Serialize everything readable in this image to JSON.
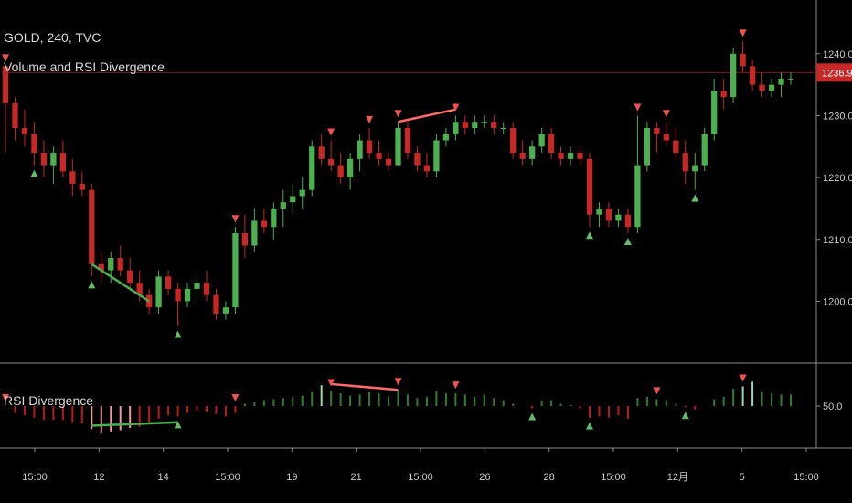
{
  "header": {
    "symbol_line": "GOLD, 240, TVC",
    "indicator_name": "Volume and RSI Divergence"
  },
  "panel2": {
    "title": "RSI Divergence"
  },
  "price_label": {
    "value": "1236.97"
  },
  "colors": {
    "up": "#4caf50",
    "down": "#c62828",
    "signal_up": "#66bb6a",
    "signal_down": "#ef5350",
    "divergence_bear": "#ff6b6b",
    "divergence_bull": "#4caf50",
    "grid": "#2a2a2a",
    "axis_text": "#c8c8c8"
  },
  "chart_data": [
    {
      "type": "candlestick",
      "title": "GOLD, 240, TVC",
      "subtitle": "Volume and RSI Divergence",
      "y_ticks": [
        1200,
        1210,
        1220,
        1230,
        1240
      ],
      "ylim": [
        1194,
        1245
      ],
      "last_price": 1236.97,
      "x_tick_labels": [
        "15:00",
        "12",
        "14",
        "15:00",
        "19",
        "21",
        "15:00",
        "26",
        "28",
        "15:00",
        "12月",
        "5",
        "15:00"
      ],
      "candles": [
        [
          1238,
          1238,
          1224,
          1232
        ],
        [
          1232,
          1233,
          1226,
          1228
        ],
        [
          1228,
          1231,
          1225,
          1227
        ],
        [
          1227,
          1229,
          1222,
          1224
        ],
        [
          1224,
          1226,
          1220,
          1222
        ],
        [
          1222,
          1225,
          1219,
          1224
        ],
        [
          1224,
          1226,
          1220,
          1221
        ],
        [
          1221,
          1223,
          1217,
          1219
        ],
        [
          1219,
          1221,
          1217,
          1218
        ],
        [
          1218,
          1219,
          1204,
          1206
        ],
        [
          1206,
          1208,
          1203,
          1205
        ],
        [
          1205,
          1208,
          1203,
          1207
        ],
        [
          1207,
          1209,
          1204,
          1205
        ],
        [
          1205,
          1207,
          1202,
          1203
        ],
        [
          1203,
          1205,
          1200,
          1201
        ],
        [
          1201,
          1202,
          1198,
          1199
        ],
        [
          1199,
          1205,
          1198,
          1204
        ],
        [
          1204,
          1205,
          1201,
          1202
        ],
        [
          1202,
          1203,
          1196,
          1200
        ],
        [
          1200,
          1203,
          1199,
          1202
        ],
        [
          1202,
          1204,
          1200,
          1203
        ],
        [
          1203,
          1205,
          1200,
          1201
        ],
        [
          1201,
          1202,
          1197,
          1198
        ],
        [
          1198,
          1200,
          1197,
          1199
        ],
        [
          1199,
          1212,
          1198,
          1211
        ],
        [
          1211,
          1214,
          1207,
          1209
        ],
        [
          1209,
          1215,
          1208,
          1213
        ],
        [
          1213,
          1215,
          1211,
          1212
        ],
        [
          1212,
          1216,
          1210,
          1215
        ],
        [
          1215,
          1218,
          1212,
          1216
        ],
        [
          1216,
          1219,
          1214,
          1217
        ],
        [
          1217,
          1220,
          1215,
          1218
        ],
        [
          1218,
          1226,
          1217,
          1225
        ],
        [
          1225,
          1227,
          1222,
          1223
        ],
        [
          1223,
          1226,
          1221,
          1222
        ],
        [
          1222,
          1224,
          1219,
          1220
        ],
        [
          1220,
          1224,
          1218,
          1223
        ],
        [
          1223,
          1227,
          1221,
          1226
        ],
        [
          1226,
          1228,
          1223,
          1224
        ],
        [
          1224,
          1226,
          1222,
          1223
        ],
        [
          1223,
          1224,
          1221,
          1222
        ],
        [
          1222,
          1229,
          1222,
          1228
        ],
        [
          1228,
          1229,
          1223,
          1224
        ],
        [
          1224,
          1225,
          1221,
          1222
        ],
        [
          1222,
          1224,
          1220,
          1221
        ],
        [
          1221,
          1227,
          1220,
          1226
        ],
        [
          1226,
          1228,
          1225,
          1227
        ],
        [
          1227,
          1230,
          1226,
          1229
        ],
        [
          1229,
          1230,
          1227,
          1228
        ],
        [
          1228,
          1230,
          1227,
          1229
        ],
        [
          1229,
          1230,
          1228,
          1229
        ],
        [
          1229,
          1230,
          1227,
          1228
        ],
        [
          1228,
          1229,
          1227,
          1228
        ],
        [
          1228,
          1229,
          1223,
          1224
        ],
        [
          1224,
          1226,
          1222,
          1223
        ],
        [
          1223,
          1226,
          1222,
          1225
        ],
        [
          1225,
          1228,
          1224,
          1227
        ],
        [
          1227,
          1228,
          1223,
          1224
        ],
        [
          1224,
          1225,
          1222,
          1223
        ],
        [
          1223,
          1225,
          1222,
          1224
        ],
        [
          1224,
          1225,
          1222,
          1223
        ],
        [
          1223,
          1224,
          1212,
          1214
        ],
        [
          1214,
          1216,
          1212,
          1215
        ],
        [
          1215,
          1216,
          1212,
          1213
        ],
        [
          1213,
          1215,
          1212,
          1214
        ],
        [
          1214,
          1215,
          1211,
          1212
        ],
        [
          1212,
          1230,
          1211,
          1222
        ],
        [
          1222,
          1229,
          1221,
          1228
        ],
        [
          1228,
          1229,
          1224,
          1227
        ],
        [
          1227,
          1229,
          1225,
          1226
        ],
        [
          1226,
          1228,
          1223,
          1224
        ],
        [
          1224,
          1226,
          1219,
          1221
        ],
        [
          1221,
          1224,
          1218,
          1222
        ],
        [
          1222,
          1228,
          1221,
          1227
        ],
        [
          1227,
          1236,
          1226,
          1234
        ],
        [
          1234,
          1236,
          1231,
          1233
        ],
        [
          1233,
          1241,
          1232,
          1240
        ],
        [
          1240,
          1242,
          1237,
          1238
        ],
        [
          1238,
          1239,
          1234,
          1235
        ],
        [
          1235,
          1237,
          1233,
          1234
        ],
        [
          1234,
          1236,
          1233,
          1235
        ],
        [
          1235,
          1237,
          1233,
          1236
        ],
        [
          1236,
          1237,
          1235,
          1236
        ]
      ],
      "signals": [
        {
          "i": 0,
          "dir": "down"
        },
        {
          "i": 3,
          "dir": "up"
        },
        {
          "i": 9,
          "dir": "up"
        },
        {
          "i": 18,
          "dir": "up"
        },
        {
          "i": 24,
          "dir": "down"
        },
        {
          "i": 34,
          "dir": "down"
        },
        {
          "i": 38,
          "dir": "down"
        },
        {
          "i": 41,
          "dir": "down"
        },
        {
          "i": 47,
          "dir": "down"
        },
        {
          "i": 61,
          "dir": "up"
        },
        {
          "i": 65,
          "dir": "up"
        },
        {
          "i": 66,
          "dir": "down"
        },
        {
          "i": 72,
          "dir": "up"
        },
        {
          "i": 69,
          "dir": "down"
        },
        {
          "i": 77,
          "dir": "down"
        }
      ],
      "divergences": [
        {
          "from": {
            "i": 9,
            "v": 1206
          },
          "to": {
            "i": 15,
            "v": 1200
          },
          "type": "bullish"
        },
        {
          "from": {
            "i": 41,
            "v": 1229
          },
          "to": {
            "i": 47,
            "v": 1231
          },
          "type": "bearish"
        }
      ]
    },
    {
      "type": "histogram",
      "title": "RSI Divergence",
      "y_ticks": [
        50.0
      ],
      "ylim": [
        20,
        80
      ],
      "baseline": 50,
      "values": [
        50,
        44,
        42,
        40,
        38,
        38,
        38,
        36,
        35,
        30,
        27,
        28,
        29,
        31,
        32,
        35,
        39,
        42,
        41,
        44,
        46,
        45,
        43,
        41,
        44,
        52,
        53,
        55,
        56,
        57,
        58,
        59,
        62,
        68,
        63,
        61,
        59,
        60,
        62,
        61,
        58,
        64,
        60,
        57,
        58,
        63,
        61,
        61,
        60,
        58,
        60,
        57,
        55,
        52,
        50,
        48,
        54,
        55,
        52,
        51,
        48,
        40,
        41,
        40,
        42,
        39,
        57,
        58,
        56,
        55,
        52,
        49,
        47,
        50,
        56,
        58,
        65,
        67,
        71,
        62,
        61,
        60,
        60
      ],
      "signals": [
        {
          "i": 0,
          "dir": "down"
        },
        {
          "i": 18,
          "dir": "up"
        },
        {
          "i": 24,
          "dir": "down"
        },
        {
          "i": 34,
          "dir": "down"
        },
        {
          "i": 41,
          "dir": "down"
        },
        {
          "i": 47,
          "dir": "down"
        },
        {
          "i": 55,
          "dir": "up"
        },
        {
          "i": 61,
          "dir": "up"
        },
        {
          "i": 68,
          "dir": "down"
        },
        {
          "i": 71,
          "dir": "up"
        },
        {
          "i": 77,
          "dir": "down"
        }
      ],
      "divergences": [
        {
          "from": {
            "i": 9,
            "v": 33
          },
          "to": {
            "i": 18,
            "v": 36
          },
          "type": "bullish"
        },
        {
          "from": {
            "i": 34,
            "v": 69
          },
          "to": {
            "i": 41,
            "v": 64
          },
          "type": "bearish"
        }
      ]
    }
  ]
}
